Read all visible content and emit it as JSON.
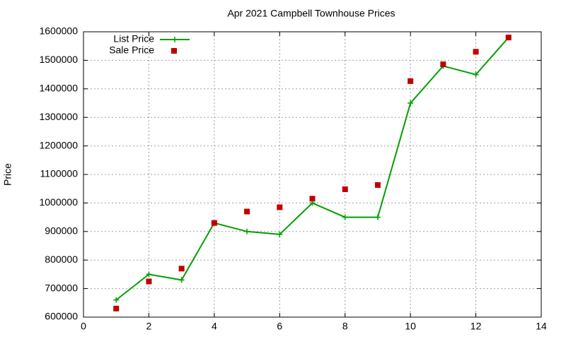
{
  "chart_data": {
    "type": "line",
    "title": "Apr 2021 Campbell Townhouse Prices",
    "y_label": "Price",
    "x": [
      1,
      2,
      3,
      4,
      5,
      6,
      7,
      8,
      9,
      10,
      11,
      12,
      13
    ],
    "series": [
      {
        "name": "List Price",
        "color": "#00a000",
        "style": "linespoints",
        "values": [
          660000,
          750000,
          730000,
          930000,
          900000,
          890000,
          1000000,
          950000,
          950000,
          1350000,
          1480000,
          1450000,
          1580000
        ]
      },
      {
        "name": "Sale Price",
        "color": "#c00000",
        "style": "points",
        "values": [
          630000,
          725000,
          770000,
          930000,
          970000,
          985000,
          1015000,
          1048000,
          1063000,
          1427000,
          1486000,
          1530000,
          1580000
        ]
      }
    ],
    "xlim": [
      0,
      14
    ],
    "xticks": [
      0,
      2,
      4,
      6,
      8,
      10,
      12,
      14
    ],
    "ylim": [
      600000,
      1600000
    ],
    "yticks": [
      600000,
      700000,
      800000,
      900000,
      1000000,
      1100000,
      1200000,
      1300000,
      1400000,
      1500000,
      1600000
    ],
    "grid": true,
    "legend": "top-left"
  }
}
